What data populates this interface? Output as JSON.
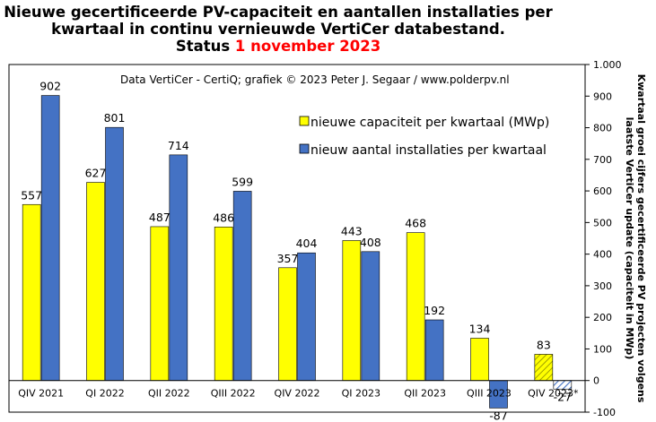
{
  "title": {
    "line1": "Nieuwe gecertificeerde PV-capaciteit en aantallen installaties per",
    "line2": "kwartaal in continu vernieuwde VertiCer databestand.",
    "status_prefix": "Status ",
    "status_date": "1 november 2023"
  },
  "credit": "Data VertiCer - CertiQ; grafiek © 2023 Peter J. Segaar / www.polderpv.nl",
  "right_axis_label": {
    "line1": "Kwartaal groei cijfers gecertificeerde PV projecten volgens",
    "line2": "laatste VertiCer update (capaciteit in MWp)"
  },
  "chart_data": {
    "type": "bar",
    "categories": [
      "QIV 2021",
      "QI 2022",
      "QII 2022",
      "QIII 2022",
      "QIV 2022",
      "QI 2023",
      "QII 2023",
      "QIII 2023",
      "QIV 2023*"
    ],
    "series": [
      {
        "name": "nieuwe capaciteit per kwartaal (MWp)",
        "color": "#ffff00",
        "values": [
          557,
          627,
          487,
          486,
          357,
          443,
          468,
          134,
          83
        ],
        "labels": [
          "557",
          "627",
          "487",
          "486",
          "357",
          "443",
          "468",
          "134",
          "83"
        ]
      },
      {
        "name": "nieuw aantal installaties per kwartaal",
        "color": "#4472c4",
        "values": [
          902,
          801,
          714,
          599,
          404,
          408,
          192,
          -87,
          -27
        ],
        "labels": [
          "902",
          "801",
          "714",
          "599",
          "404",
          "408",
          "192",
          "-87",
          "-27"
        ]
      }
    ],
    "hatched_last_category": true,
    "ylim": [
      -100,
      1000
    ],
    "yticks": [
      -100,
      0,
      100,
      200,
      300,
      400,
      500,
      600,
      700,
      800,
      900,
      1000
    ],
    "ytick_labels": [
      "-100",
      "0",
      "100",
      "200",
      "300",
      "400",
      "500",
      "600",
      "700",
      "800",
      "900",
      "1.000"
    ],
    "y_axis_side": "right",
    "grid": false,
    "legend_position": "top-right inside plot"
  }
}
